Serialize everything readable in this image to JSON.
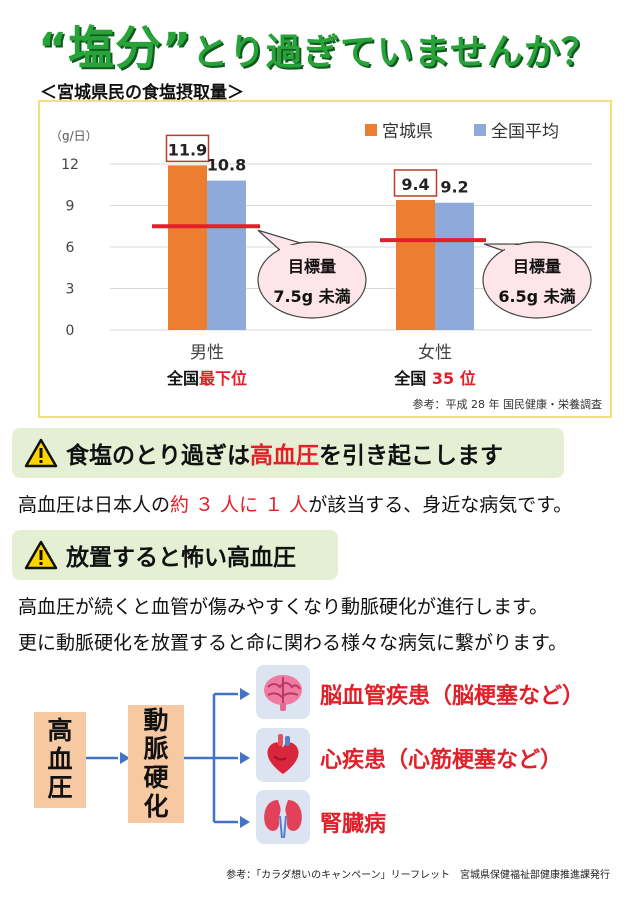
{
  "title": {
    "q_open": "“",
    "salt": "塩分",
    "q_close": "”",
    "rest": "とり過ぎていませんか？"
  },
  "subtitle": "＜宮城県民の食塩摂取量＞",
  "chart_data": {
    "type": "bar",
    "ylabel": "（g/日）",
    "ylim": [
      0,
      12
    ],
    "yticks": [
      "12",
      "9",
      "6",
      "3",
      "0"
    ],
    "categories": [
      "男性",
      "女性"
    ],
    "series": [
      {
        "name": "宮城県",
        "values": [
          11.9,
          9.4
        ],
        "color": "#ed7d31"
      },
      {
        "name": "全国平均",
        "values": [
          10.8,
          9.2
        ],
        "color": "#8eaadb"
      }
    ],
    "value_labels": [
      [
        "11.9",
        "10.8"
      ],
      [
        "9.4",
        "9.2"
      ]
    ],
    "targets": [
      {
        "value": 7.5,
        "label_line1": "目標量",
        "label_line2": "7.5g 未満"
      },
      {
        "value": 6.5,
        "label_line1": "目標量",
        "label_line2": "6.5g 未満"
      }
    ],
    "rank_prefix": [
      "全国",
      "全国 "
    ],
    "rank_value": [
      "最下位",
      "35 位"
    ],
    "source": "参考：平成 28 年 国民健康・栄養調査",
    "legend_position": "top-right",
    "grid": true
  },
  "banner1": {
    "pre": "食塩のとり過ぎは",
    "hl": "高血圧",
    "post": "を引き起こします"
  },
  "para1": {
    "pre": "高血圧は日本人の",
    "hl": "約 ３ 人に １ 人",
    "post": "が該当する、身近な病気です。"
  },
  "banner2": {
    "text": "放置すると怖い高血圧"
  },
  "para2": "高血圧が続くと血管が傷みやすくなり動脈硬化が進行します。",
  "para3": "更に動脈硬化を放置すると命に関わる様々な病気に繋がります。",
  "flow": {
    "node1": [
      "高",
      "血",
      "圧"
    ],
    "node2": [
      "動",
      "脈",
      "硬",
      "化"
    ],
    "diseases": [
      "脳血管疾患（脳梗塞など）",
      "心疾患（心筋梗塞など）",
      "腎臓病"
    ],
    "icons": [
      "brain-icon",
      "heart-icon",
      "kidney-icon"
    ]
  },
  "footer": "参考：「カラダ想いのキャンペーン」リーフレット　宮城県保健福祉部健康推進課発行"
}
